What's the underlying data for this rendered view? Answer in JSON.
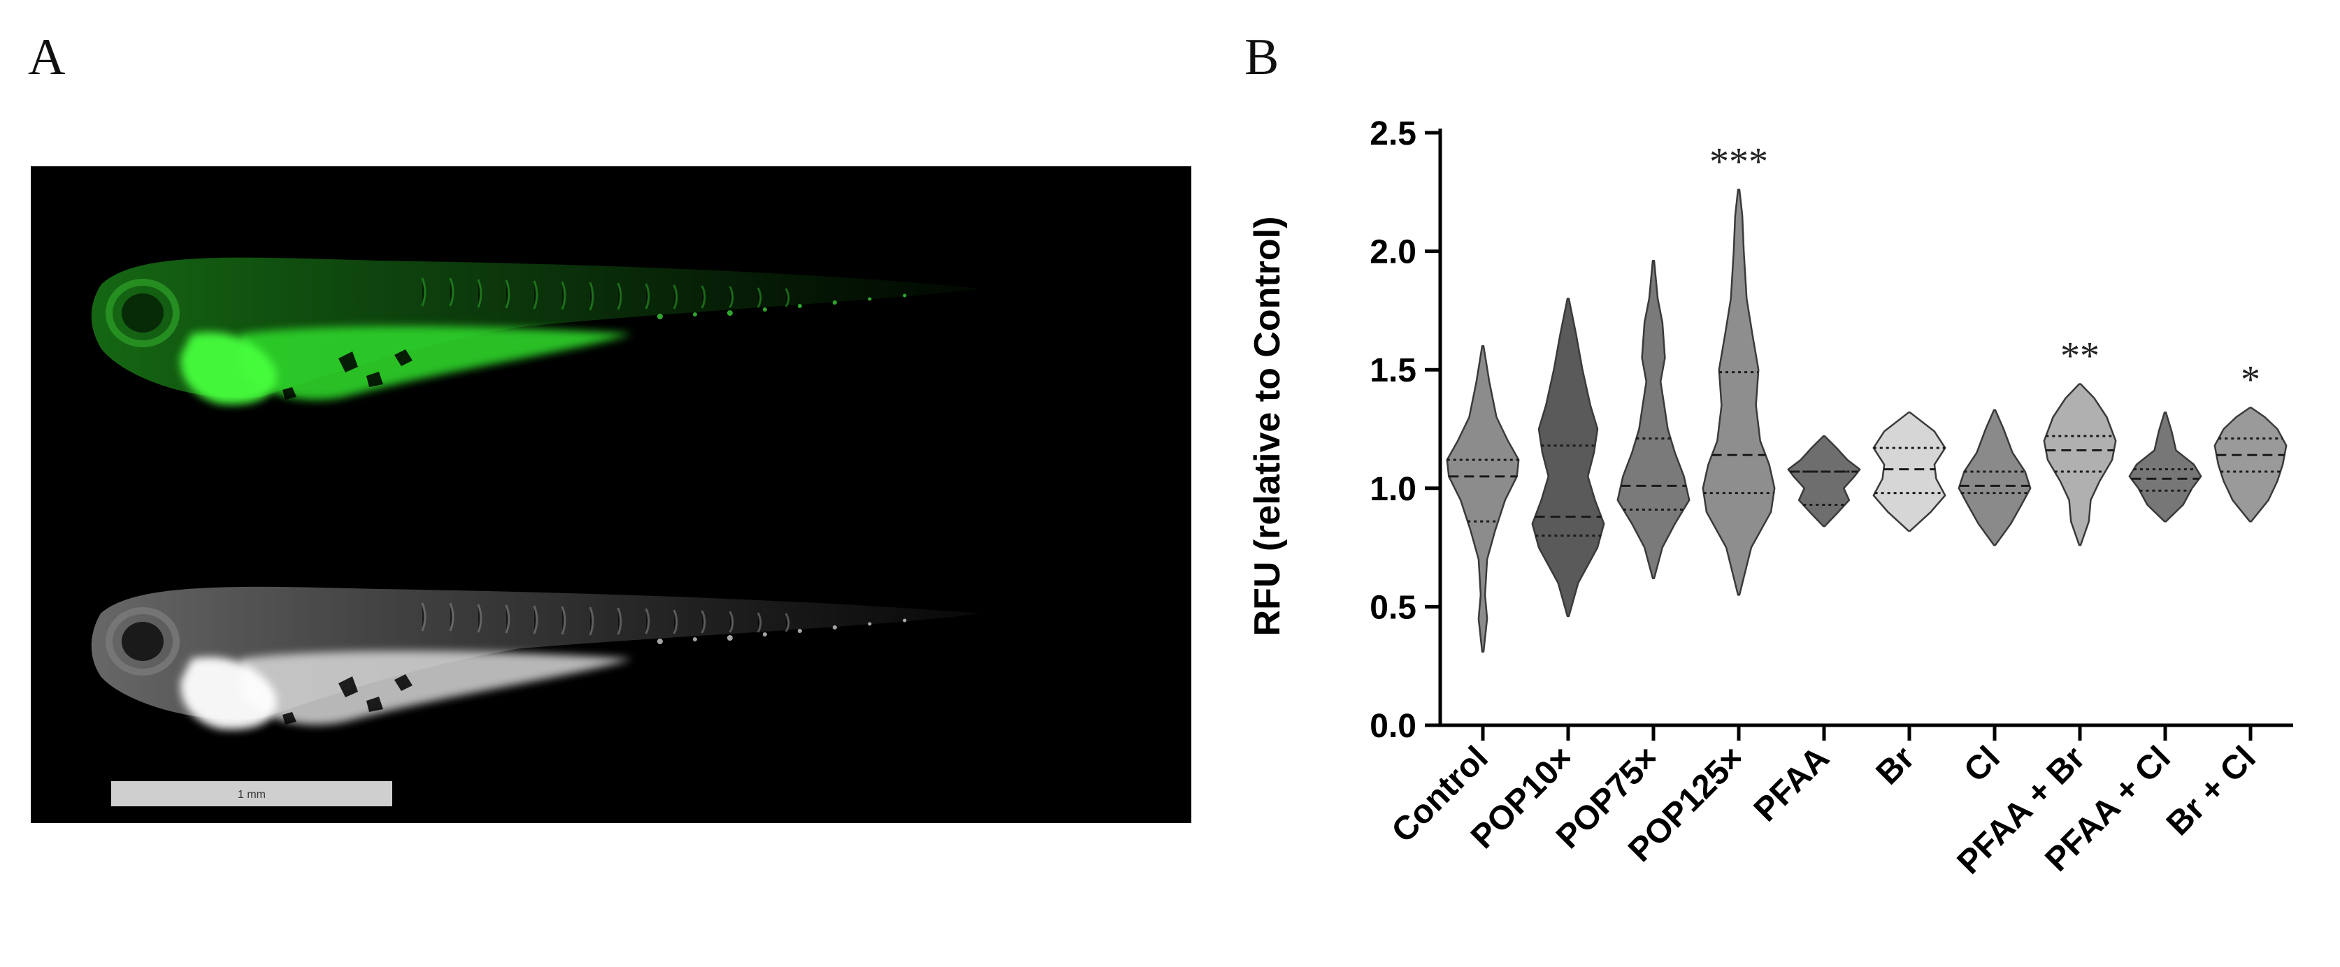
{
  "panels": {
    "a_label": "A",
    "b_label": "B"
  },
  "micrograph": {
    "scalebar_label": "1 mm",
    "colors": {
      "background": "#000000",
      "fluorescence": "#22c81e",
      "grayscale": "#e6e6e6"
    }
  },
  "chart_data": {
    "type": "violin",
    "ylabel": "RFU (relative to Control)",
    "xlabel": "",
    "ylim": [
      0,
      2.5
    ],
    "yticks": [
      0.0,
      0.5,
      1.0,
      1.5,
      2.0,
      2.5
    ],
    "ytick_labels": [
      "0.0",
      "0.5",
      "1.0",
      "1.5",
      "2.0",
      "2.5"
    ],
    "grid": false,
    "legend": "none",
    "categories": [
      "Control",
      "POP10×",
      "POP75×",
      "POP125×",
      "PFAA",
      "Br",
      "Cl",
      "PFAA + Br",
      "PFAA + Cl",
      "Br + Cl"
    ],
    "groups": [
      {
        "name": "Control",
        "color": "#8c8c8c",
        "min": 0.31,
        "max": 1.6,
        "q1": 0.86,
        "median": 1.05,
        "q3": 1.12,
        "significance": "",
        "shape": [
          [
            0.31,
            0.02
          ],
          [
            0.45,
            0.12
          ],
          [
            0.55,
            0.06
          ],
          [
            0.7,
            0.12
          ],
          [
            0.82,
            0.34
          ],
          [
            0.95,
            0.62
          ],
          [
            1.05,
            0.95
          ],
          [
            1.12,
            1.0
          ],
          [
            1.2,
            0.7
          ],
          [
            1.3,
            0.38
          ],
          [
            1.45,
            0.18
          ],
          [
            1.6,
            0.02
          ]
        ]
      },
      {
        "name": "POP10×",
        "color": "#5a5a5a",
        "min": 0.46,
        "max": 1.8,
        "q1": 0.8,
        "median": 0.88,
        "q3": 1.18,
        "significance": "",
        "shape": [
          [
            0.46,
            0.02
          ],
          [
            0.6,
            0.28
          ],
          [
            0.75,
            0.82
          ],
          [
            0.85,
            1.0
          ],
          [
            0.95,
            0.75
          ],
          [
            1.05,
            0.55
          ],
          [
            1.15,
            0.72
          ],
          [
            1.25,
            0.82
          ],
          [
            1.35,
            0.62
          ],
          [
            1.5,
            0.4
          ],
          [
            1.65,
            0.22
          ],
          [
            1.8,
            0.02
          ]
        ]
      },
      {
        "name": "POP75×",
        "color": "#7a7a7a",
        "min": 0.62,
        "max": 1.96,
        "q1": 0.91,
        "median": 1.01,
        "q3": 1.21,
        "significance": "",
        "shape": [
          [
            0.62,
            0.02
          ],
          [
            0.75,
            0.25
          ],
          [
            0.85,
            0.6
          ],
          [
            0.95,
            1.0
          ],
          [
            1.05,
            0.85
          ],
          [
            1.15,
            0.6
          ],
          [
            1.25,
            0.4
          ],
          [
            1.35,
            0.3
          ],
          [
            1.45,
            0.2
          ],
          [
            1.55,
            0.32
          ],
          [
            1.7,
            0.25
          ],
          [
            1.8,
            0.12
          ],
          [
            1.96,
            0.02
          ]
        ]
      },
      {
        "name": "POP125×",
        "color": "#8e8e8e",
        "min": 0.55,
        "max": 2.26,
        "q1": 0.98,
        "median": 1.14,
        "q3": 1.49,
        "significance": "***",
        "shape": [
          [
            0.55,
            0.02
          ],
          [
            0.75,
            0.35
          ],
          [
            0.9,
            0.9
          ],
          [
            1.0,
            1.0
          ],
          [
            1.1,
            0.85
          ],
          [
            1.2,
            0.6
          ],
          [
            1.35,
            0.48
          ],
          [
            1.5,
            0.55
          ],
          [
            1.65,
            0.38
          ],
          [
            1.8,
            0.22
          ],
          [
            2.0,
            0.14
          ],
          [
            2.15,
            0.1
          ],
          [
            2.26,
            0.02
          ]
        ]
      },
      {
        "name": "PFAA",
        "color": "#6e6e6e",
        "min": 0.84,
        "max": 1.22,
        "q1": 0.93,
        "median": 1.07,
        "q3": 1.07,
        "significance": "",
        "shape": [
          [
            0.84,
            0.02
          ],
          [
            0.9,
            0.4
          ],
          [
            0.95,
            0.7
          ],
          [
            1.0,
            0.55
          ],
          [
            1.05,
            0.85
          ],
          [
            1.08,
            1.0
          ],
          [
            1.12,
            0.65
          ],
          [
            1.17,
            0.35
          ],
          [
            1.22,
            0.02
          ]
        ]
      },
      {
        "name": "Br",
        "color": "#d6d6d6",
        "min": 0.82,
        "max": 1.32,
        "q1": 0.98,
        "median": 1.08,
        "q3": 1.17,
        "significance": "",
        "shape": [
          [
            0.82,
            0.02
          ],
          [
            0.9,
            0.6
          ],
          [
            0.97,
            1.0
          ],
          [
            1.04,
            0.75
          ],
          [
            1.1,
            0.7
          ],
          [
            1.17,
            1.0
          ],
          [
            1.24,
            0.7
          ],
          [
            1.32,
            0.02
          ]
        ]
      },
      {
        "name": "Cl",
        "color": "#8a8a8a",
        "min": 0.76,
        "max": 1.33,
        "q1": 0.98,
        "median": 1.01,
        "q3": 1.07,
        "significance": "",
        "shape": [
          [
            0.76,
            0.02
          ],
          [
            0.85,
            0.45
          ],
          [
            0.93,
            0.75
          ],
          [
            1.0,
            1.0
          ],
          [
            1.07,
            0.85
          ],
          [
            1.15,
            0.5
          ],
          [
            1.25,
            0.25
          ],
          [
            1.33,
            0.02
          ]
        ]
      },
      {
        "name": "PFAA + Br",
        "color": "#b0b0b0",
        "min": 0.76,
        "max": 1.44,
        "q1": 1.07,
        "median": 1.16,
        "q3": 1.22,
        "significance": "**",
        "shape": [
          [
            0.76,
            0.02
          ],
          [
            0.86,
            0.25
          ],
          [
            0.95,
            0.3
          ],
          [
            1.03,
            0.55
          ],
          [
            1.12,
            0.9
          ],
          [
            1.2,
            1.0
          ],
          [
            1.3,
            0.75
          ],
          [
            1.38,
            0.4
          ],
          [
            1.44,
            0.02
          ]
        ]
      },
      {
        "name": "PFAA + Cl",
        "color": "#777777",
        "min": 0.86,
        "max": 1.32,
        "q1": 0.99,
        "median": 1.04,
        "q3": 1.08,
        "significance": "",
        "shape": [
          [
            0.86,
            0.02
          ],
          [
            0.93,
            0.5
          ],
          [
            1.0,
            0.75
          ],
          [
            1.05,
            1.0
          ],
          [
            1.1,
            0.8
          ],
          [
            1.16,
            0.3
          ],
          [
            1.24,
            0.18
          ],
          [
            1.32,
            0.02
          ]
        ]
      },
      {
        "name": "Br + Cl",
        "color": "#9a9a9a",
        "min": 0.86,
        "max": 1.34,
        "q1": 1.07,
        "median": 1.14,
        "q3": 1.21,
        "significance": "*",
        "shape": [
          [
            0.86,
            0.02
          ],
          [
            0.95,
            0.5
          ],
          [
            1.03,
            0.75
          ],
          [
            1.1,
            0.9
          ],
          [
            1.18,
            1.0
          ],
          [
            1.25,
            0.75
          ],
          [
            1.3,
            0.4
          ],
          [
            1.34,
            0.02
          ]
        ]
      }
    ]
  }
}
